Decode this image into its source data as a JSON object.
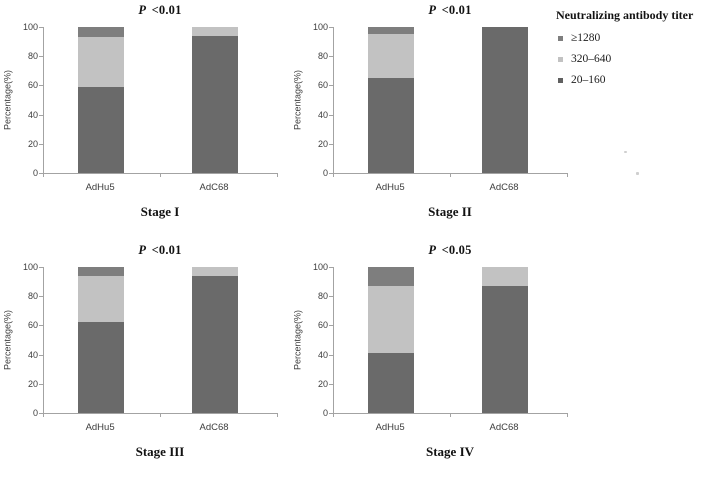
{
  "legend": {
    "title": "Neutralizing antibody titer",
    "items": [
      {
        "label": "≥1280",
        "color": "#7e7e7e"
      },
      {
        "label": "320–640",
        "color": "#c2c2c2"
      },
      {
        "label": "20–160",
        "color": "#606060"
      }
    ]
  },
  "chart_data": [
    {
      "type": "bar",
      "stacked": true,
      "stage": "Stage I",
      "title": "P <0.01",
      "title_italic": "P",
      "title_rest": "<0.01",
      "categories": [
        "AdHu5",
        "AdC68"
      ],
      "ylabel": "Percentage(%)",
      "ylim": [
        0,
        100
      ],
      "yticks": [
        0,
        20,
        40,
        60,
        80,
        100
      ],
      "series": [
        {
          "name": "20–160",
          "color": "#6a6a6a",
          "values": [
            59,
            94
          ]
        },
        {
          "name": "320–640",
          "color": "#c2c2c2",
          "values": [
            34,
            6
          ]
        },
        {
          "name": "≥1280",
          "color": "#7e7e7e",
          "values": [
            7,
            0
          ]
        }
      ]
    },
    {
      "type": "bar",
      "stacked": true,
      "stage": "Stage II",
      "title": "P <0.01",
      "title_italic": "P",
      "title_rest": "<0.01",
      "categories": [
        "AdHu5",
        "AdC68"
      ],
      "ylabel": "Percentage(%)",
      "ylim": [
        0,
        100
      ],
      "yticks": [
        0,
        20,
        40,
        60,
        80,
        100
      ],
      "series": [
        {
          "name": "20–160",
          "color": "#6a6a6a",
          "values": [
            65,
            100
          ]
        },
        {
          "name": "320–640",
          "color": "#c2c2c2",
          "values": [
            30,
            0
          ]
        },
        {
          "name": "≥1280",
          "color": "#7e7e7e",
          "values": [
            5,
            0
          ]
        }
      ]
    },
    {
      "type": "bar",
      "stacked": true,
      "stage": "Stage III",
      "title": "P <0.01",
      "title_italic": "P",
      "title_rest": "<0.01",
      "categories": [
        "AdHu5",
        "AdC68"
      ],
      "ylabel": "Percentage(%)",
      "ylim": [
        0,
        100
      ],
      "yticks": [
        0,
        20,
        40,
        60,
        80,
        100
      ],
      "series": [
        {
          "name": "20–160",
          "color": "#6a6a6a",
          "values": [
            62,
            94
          ]
        },
        {
          "name": "320–640",
          "color": "#c2c2c2",
          "values": [
            32,
            6
          ]
        },
        {
          "name": "≥1280",
          "color": "#7e7e7e",
          "values": [
            6,
            0
          ]
        }
      ]
    },
    {
      "type": "bar",
      "stacked": true,
      "stage": "Stage IV",
      "title": "P <0.05",
      "title_italic": "P",
      "title_rest": "<0.05",
      "categories": [
        "AdHu5",
        "AdC68"
      ],
      "ylabel": "Percentage(%)",
      "ylim": [
        0,
        100
      ],
      "yticks": [
        0,
        20,
        40,
        60,
        80,
        100
      ],
      "series": [
        {
          "name": "20–160",
          "color": "#6a6a6a",
          "values": [
            41,
            87
          ]
        },
        {
          "name": "320–640",
          "color": "#c2c2c2",
          "values": [
            46,
            13
          ]
        },
        {
          "name": "≥1280",
          "color": "#7e7e7e",
          "values": [
            13,
            0
          ]
        }
      ]
    }
  ]
}
